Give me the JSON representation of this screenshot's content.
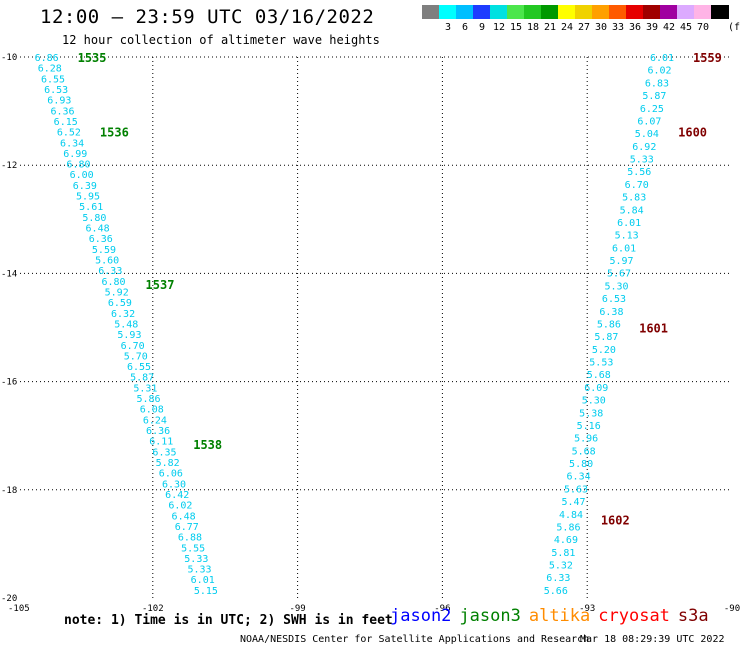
{
  "header": {
    "title": "12:00 – 23:59 UTC 03/16/2022",
    "subtitle": "12 hour collection of altimeter wave heights"
  },
  "color_scale": {
    "unit": "(ft)",
    "swatches": [
      {
        "color": "#7f7f7f",
        "label": ""
      },
      {
        "color": "#00ffff",
        "label": "3"
      },
      {
        "color": "#00bfff",
        "label": "6"
      },
      {
        "color": "#1e3cff",
        "label": "9"
      },
      {
        "color": "#00e1e1",
        "label": "12"
      },
      {
        "color": "#4ce64c",
        "label": "15"
      },
      {
        "color": "#22c822",
        "label": "18"
      },
      {
        "color": "#009900",
        "label": "21"
      },
      {
        "color": "#ffff00",
        "label": "24"
      },
      {
        "color": "#f0d200",
        "label": "27"
      },
      {
        "color": "#ffa000",
        "label": "30"
      },
      {
        "color": "#ff5a00",
        "label": "33"
      },
      {
        "color": "#e60000",
        "label": "36"
      },
      {
        "color": "#a00000",
        "label": "39"
      },
      {
        "color": "#a000a0",
        "label": "42"
      },
      {
        "color": "#dcaaff",
        "label": "45"
      },
      {
        "color": "#ffb4e6",
        "label": "70"
      },
      {
        "color": "#000000",
        "label": ""
      }
    ]
  },
  "chart_data": {
    "type": "scatter",
    "xlim": [
      -105,
      -90
    ],
    "ylim": [
      -20,
      -10
    ],
    "x_ticks": [
      "-105",
      "-102",
      "-99",
      "-96",
      "-93",
      "-90"
    ],
    "y_ticks": [
      "-10",
      "-12",
      "-14",
      "-16",
      "-18",
      "-20"
    ],
    "grid": "dotted",
    "point_color": "#00ccee",
    "tracks": [
      {
        "lon_start": -104.2,
        "lat_start": -10.0,
        "lon_end": -100.9,
        "lat_end": -19.85,
        "values": [
          "6.86",
          "6.28",
          "6.55",
          "6.53",
          "6.93",
          "6.36",
          "6.15",
          "6.52",
          "6.34",
          "6.99",
          "6.80",
          "6.00",
          "6.39",
          "5.95",
          "5.61",
          "5.80",
          "6.48",
          "6.36",
          "5.59",
          "5.60",
          "6.33",
          "6.80",
          "5.92",
          "6.59",
          "6.32",
          "5.48",
          "5.93",
          "6.70",
          "5.70",
          "6.55",
          "5.87",
          "5.31",
          "5.86",
          "6.08",
          "6.24",
          "6.36",
          "6.11",
          "6.35",
          "5.82",
          "6.06",
          "6.30",
          "6.42",
          "6.02",
          "6.48",
          "6.77",
          "6.88",
          "5.55",
          "5.33",
          "5.33",
          "6.01",
          "5.15"
        ],
        "time_labels": [
          {
            "text": "1535",
            "lat": -10.0,
            "color": "#008000"
          },
          {
            "text": "1536",
            "lat": -11.38,
            "color": "#008000"
          },
          {
            "text": "1537",
            "lat": -14.2,
            "color": "#008000"
          },
          {
            "text": "1538",
            "lat": -17.15,
            "color": "#008000"
          }
        ]
      },
      {
        "lon_start": -91.45,
        "lat_start": -10.0,
        "lon_end": -93.65,
        "lat_end": -19.85,
        "values": [
          "6.01",
          "6.02",
          "6.83",
          "5.87",
          "6.25",
          "6.07",
          "5.04",
          "6.92",
          "5.33",
          "5.56",
          "6.70",
          "5.83",
          "5.84",
          "6.01",
          "5.13",
          "6.01",
          "5.97",
          "5.67",
          "5.30",
          "6.53",
          "6.38",
          "5.86",
          "5.87",
          "5.20",
          "5.53",
          "5.68",
          "6.09",
          "5.30",
          "5.38",
          "5.16",
          "5.96",
          "5.68",
          "5.80",
          "6.34",
          "5.63",
          "5.47",
          "4.84",
          "5.86",
          "4.69",
          "5.81",
          "5.32",
          "6.33",
          "5.66"
        ],
        "time_labels": [
          {
            "text": "1559",
            "lat": -10.0,
            "color": "#800000"
          },
          {
            "text": "1600",
            "lat": -11.38,
            "color": "#800000"
          },
          {
            "text": "1601",
            "lat": -15.0,
            "color": "#800000"
          },
          {
            "text": "1602",
            "lat": -18.55,
            "color": "#800000"
          }
        ]
      }
    ]
  },
  "footer": {
    "note": "note: 1) Time is in UTC; 2) SWH is in feet",
    "legend": [
      {
        "name": "jason2",
        "color": "#0000ff"
      },
      {
        "name": "jason3",
        "color": "#008000"
      },
      {
        "name": "altika",
        "color": "#ff8c00"
      },
      {
        "name": "cryosat",
        "color": "#ff0000"
      },
      {
        "name": "s3a",
        "color": "#800000"
      }
    ],
    "credit": "NOAA/NESDIS Center for Satellite Applications and Research",
    "stamp": "Mar 18 08:29:39 UTC 2022"
  }
}
